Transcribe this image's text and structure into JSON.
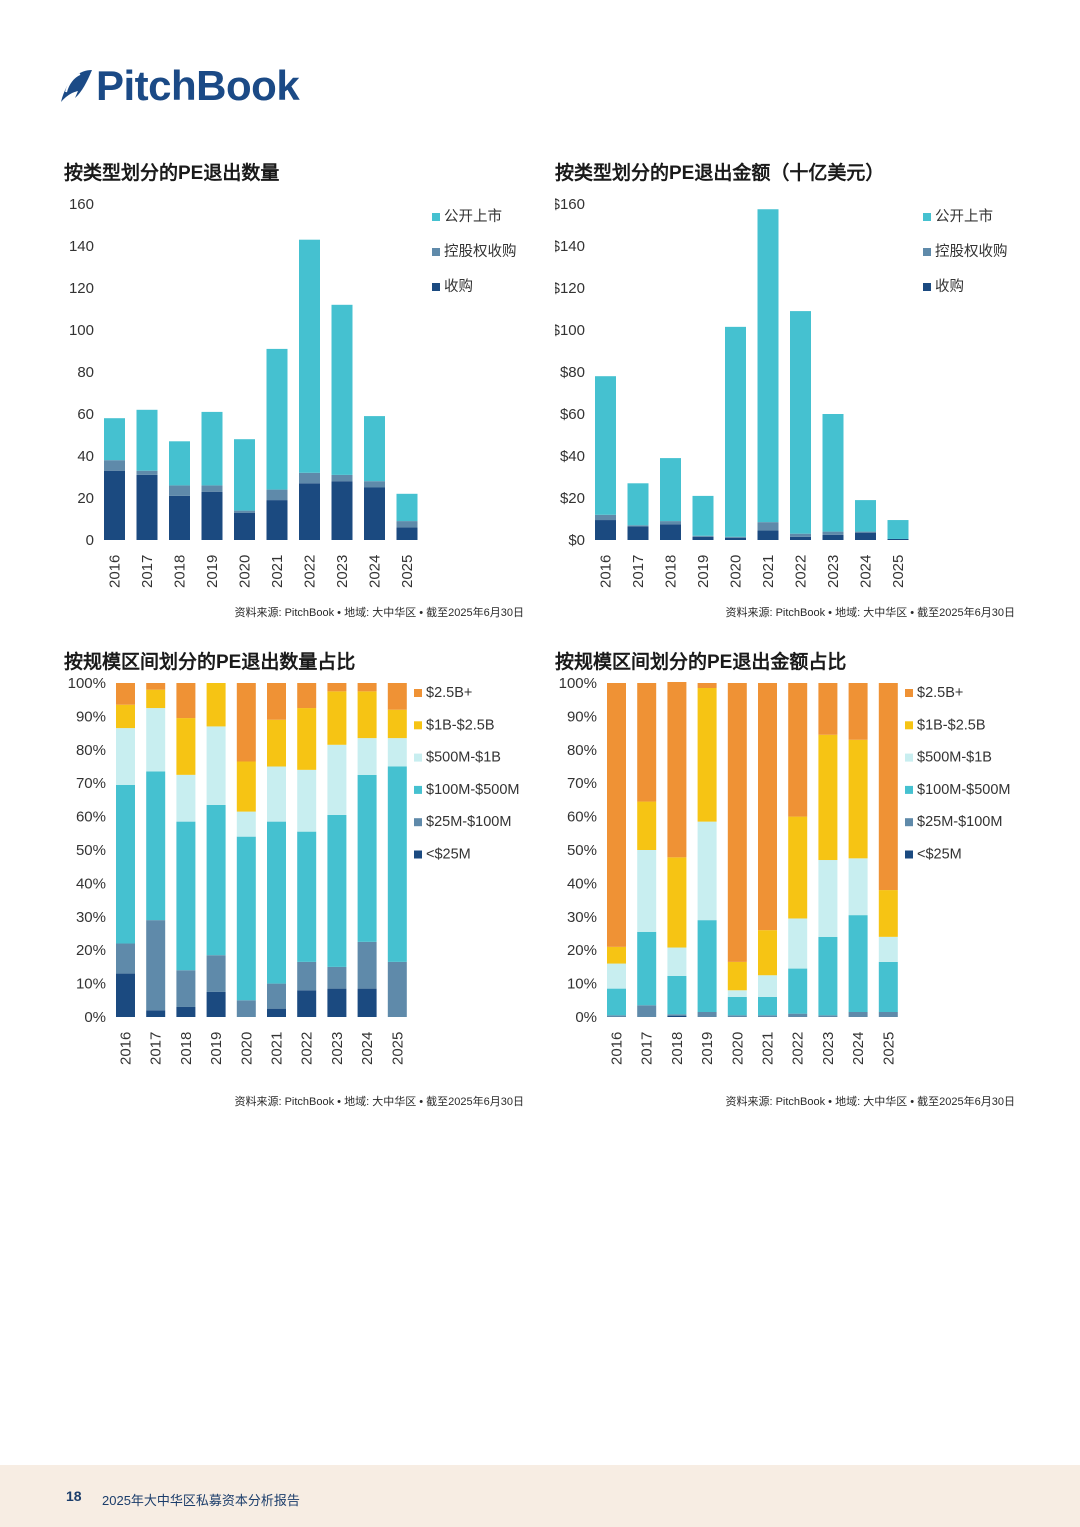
{
  "brand": {
    "name": "PitchBook",
    "color": "#1b4a86"
  },
  "source_note": "资料来源: PitchBook • 地域: 大中华区 • 截至2025年6月30日",
  "footer": {
    "page_number": "18",
    "report_title": "2025年大中华区私募资本分析报告"
  },
  "colors": {
    "公开上市": "#45c1d0",
    "控股权收购": "#5f8aaa",
    "收购": "#1b4a80",
    "$2.5B+": "#ef9235",
    "$1B-$2.5B": "#f6c414",
    "$500M-$1B": "#c8eef0",
    "$100M-$500M": "#45c1d0",
    "$25M-$100M": "#5f8aaa",
    "<$25M": "#1b4a80"
  },
  "chart_data": [
    {
      "id": "count",
      "type": "bar",
      "stacked": true,
      "title": "按类型划分的PE退出数量",
      "categories": [
        "2016",
        "2017",
        "2018",
        "2019",
        "2020",
        "2021",
        "2022",
        "2023",
        "2024",
        "2025"
      ],
      "ylim": [
        0,
        160
      ],
      "yticks": [
        "0",
        "20",
        "40",
        "60",
        "80",
        "100",
        "120",
        "140",
        "160"
      ],
      "legend_position": "top-right",
      "series": [
        {
          "name": "收购",
          "values": [
            33,
            31,
            21,
            23,
            13,
            19,
            27,
            28,
            25,
            6
          ]
        },
        {
          "name": "控股权收购",
          "values": [
            5,
            2,
            5,
            3,
            1,
            5,
            5,
            3,
            3,
            3
          ]
        },
        {
          "name": "公开上市",
          "values": [
            20,
            29,
            21,
            35,
            34,
            67,
            111,
            81,
            31,
            13
          ]
        }
      ]
    },
    {
      "id": "value",
      "type": "bar",
      "stacked": true,
      "title": "按类型划分的PE退出金额（十亿美元）",
      "categories": [
        "2016",
        "2017",
        "2018",
        "2019",
        "2020",
        "2021",
        "2022",
        "2023",
        "2024",
        "2025"
      ],
      "ylim": [
        0,
        160
      ],
      "yticks": [
        "$0",
        "$20",
        "$40",
        "$60",
        "$80",
        "$100",
        "$120",
        "$140",
        "$160"
      ],
      "legend_position": "top-right",
      "series": [
        {
          "name": "收购",
          "values": [
            9.5,
            6.5,
            7.5,
            1.5,
            1.0,
            4.5,
            1.5,
            2.5,
            3.5,
            0.5
          ]
        },
        {
          "name": "控股权收购",
          "values": [
            2.5,
            0.5,
            1.5,
            0.5,
            0.5,
            4.0,
            1.5,
            1.5,
            0.5,
            0
          ]
        },
        {
          "name": "公开上市",
          "values": [
            66,
            20,
            30,
            19,
            100,
            149,
            106,
            56,
            15,
            9
          ]
        }
      ]
    },
    {
      "id": "count-share",
      "type": "bar",
      "stacked": true,
      "percent": true,
      "title": "按规模区间划分的PE退出数量占比",
      "categories": [
        "2016",
        "2017",
        "2018",
        "2019",
        "2020",
        "2021",
        "2022",
        "2023",
        "2024",
        "2025"
      ],
      "ylim": [
        0,
        100
      ],
      "yticks": [
        "0%",
        "10%",
        "20%",
        "30%",
        "40%",
        "50%",
        "60%",
        "70%",
        "80%",
        "90%",
        "100%"
      ],
      "legend_position": "right",
      "series": [
        {
          "name": "<$25M",
          "values": [
            13,
            2,
            3,
            7.5,
            0,
            2.5,
            8,
            8.5,
            8.5,
            0
          ]
        },
        {
          "name": "$25M-$100M",
          "values": [
            9,
            27,
            11,
            11,
            5,
            7.5,
            8.5,
            6.5,
            14,
            16.5
          ]
        },
        {
          "name": "$100M-$500M",
          "values": [
            47.5,
            44.5,
            44.5,
            45,
            49,
            48.5,
            39,
            45.5,
            50,
            58.5
          ]
        },
        {
          "name": "$500M-$1B",
          "values": [
            17,
            19,
            14,
            23.5,
            7.5,
            16.5,
            18.5,
            21,
            11,
            8.5
          ]
        },
        {
          "name": "$1B-$2.5B",
          "values": [
            7,
            5.5,
            17,
            13,
            15,
            14,
            18.5,
            16,
            14,
            8.5
          ]
        },
        {
          "name": "$2.5B+",
          "values": [
            6.5,
            2,
            10.5,
            0,
            23.5,
            11,
            7.5,
            2.5,
            2.5,
            8
          ]
        }
      ]
    },
    {
      "id": "value-share",
      "type": "bar",
      "stacked": true,
      "percent": true,
      "title": "按规模区间划分的PE退出金额占比",
      "categories": [
        "2016",
        "2017",
        "2018",
        "2019",
        "2020",
        "2021",
        "2022",
        "2023",
        "2024",
        "2025"
      ],
      "ylim": [
        0,
        100
      ],
      "yticks": [
        "0%",
        "10%",
        "20%",
        "30%",
        "40%",
        "50%",
        "60%",
        "70%",
        "80%",
        "90%",
        "100%"
      ],
      "legend_position": "right",
      "series": [
        {
          "name": "<$25M",
          "values": [
            0,
            0,
            0.3,
            0,
            0,
            0,
            0,
            0,
            0,
            0
          ]
        },
        {
          "name": "$25M-$100M",
          "values": [
            0.5,
            3.5,
            0.5,
            1.5,
            0.5,
            0.5,
            1,
            0.5,
            1.5,
            1.5
          ]
        },
        {
          "name": "$100M-$500M",
          "values": [
            8,
            22,
            11.5,
            27.5,
            5.5,
            5.5,
            13.5,
            23.5,
            29,
            15
          ]
        },
        {
          "name": "$500M-$1B",
          "values": [
            7.5,
            24.5,
            8.5,
            29.5,
            2,
            6.5,
            15,
            23,
            17,
            7.5
          ]
        },
        {
          "name": "$1B-$2.5B",
          "values": [
            5,
            14.5,
            27,
            40,
            8.5,
            13.5,
            30.5,
            37.5,
            35.5,
            14
          ]
        },
        {
          "name": "$2.5B+",
          "values": [
            79,
            35.5,
            52.5,
            1.5,
            83.5,
            74,
            40,
            15.5,
            17,
            62
          ]
        }
      ]
    }
  ]
}
